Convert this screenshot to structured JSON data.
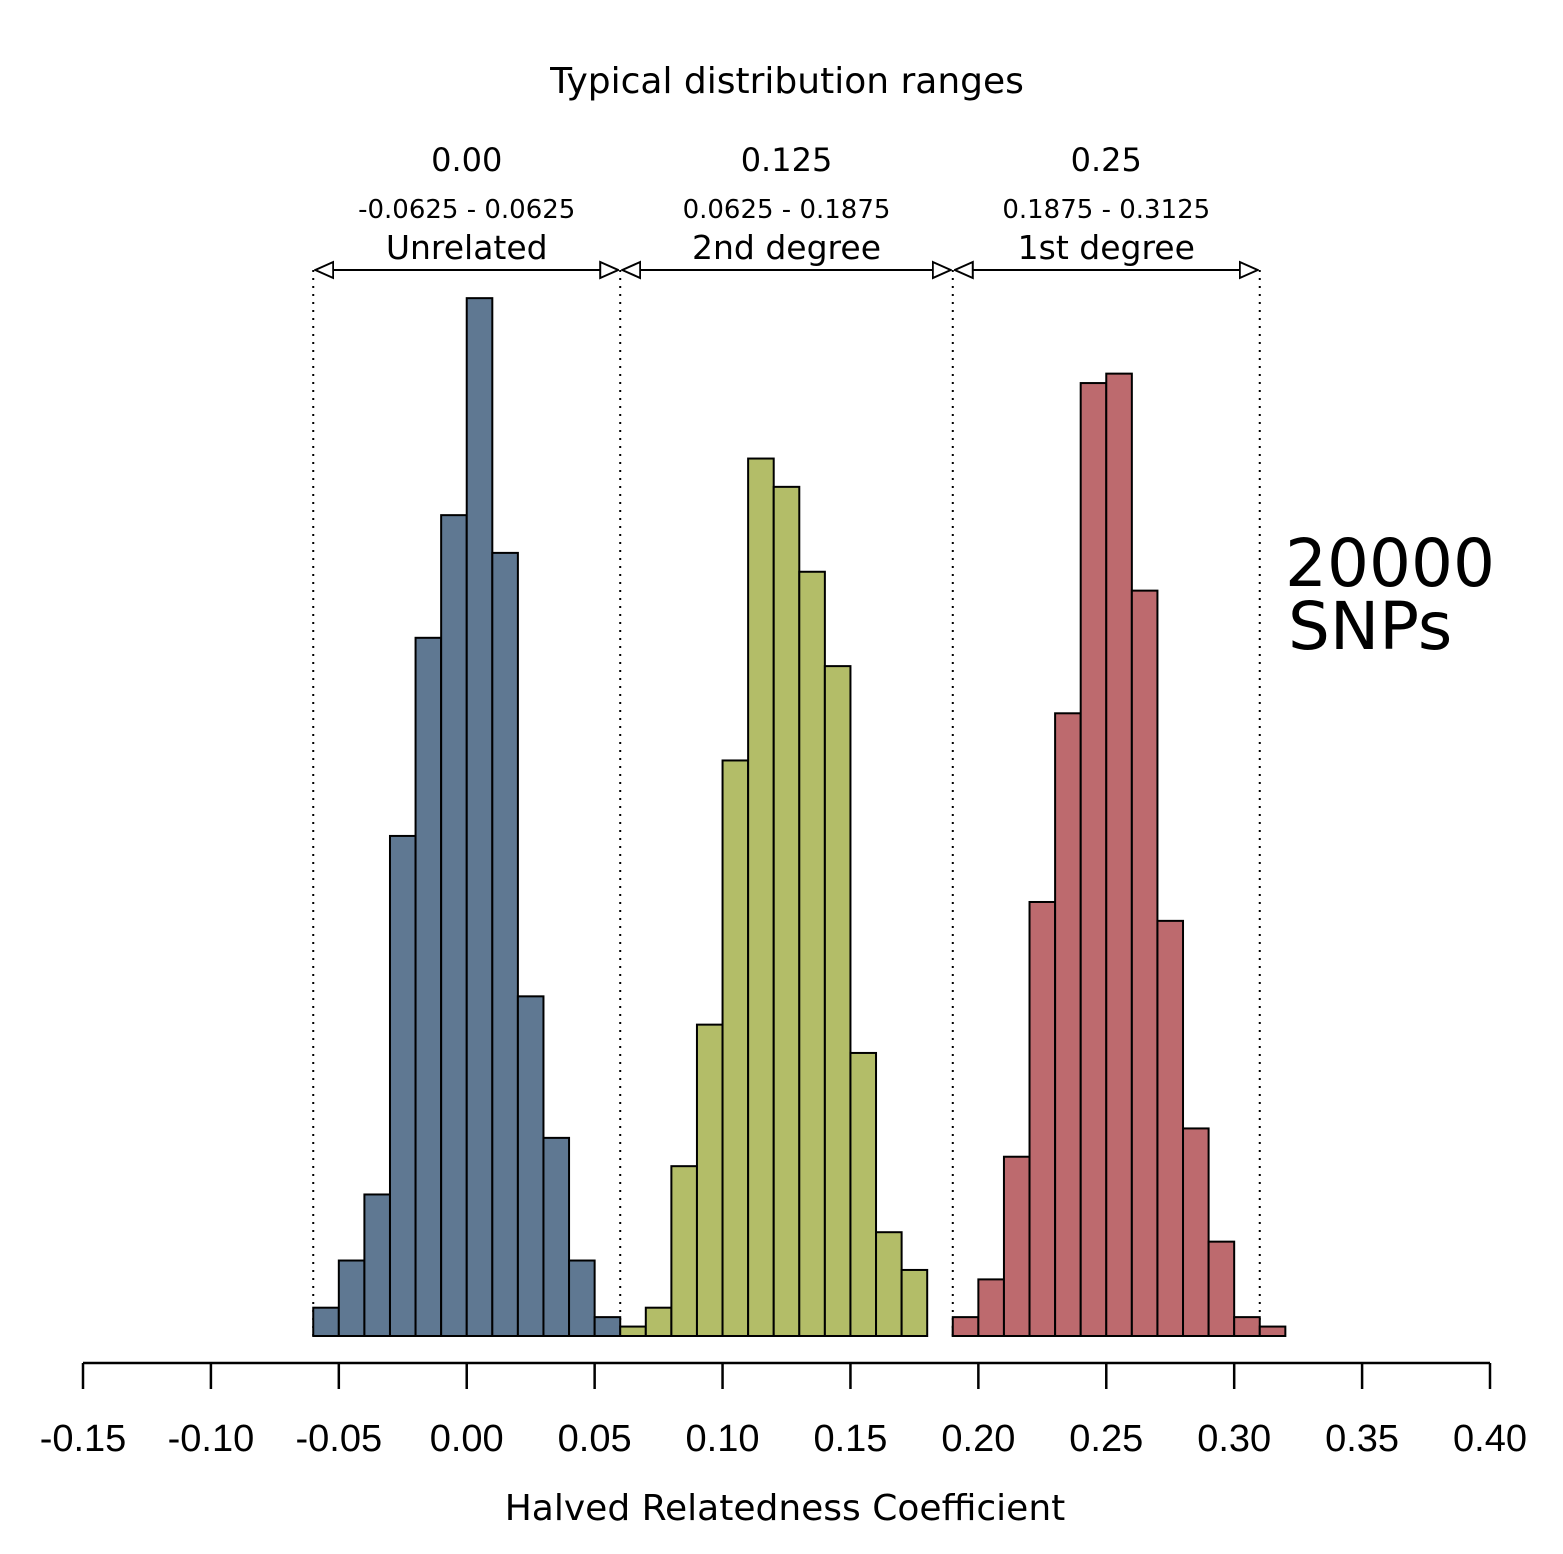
{
  "chart_data": {
    "type": "bar",
    "title": "Typical distribution ranges",
    "xlabel": "Halved Relatedness Coefficient",
    "ylabel": "",
    "xlim": [
      -0.15,
      0.4
    ],
    "x_ticks": [
      "-0.15",
      "-0.10",
      "-0.05",
      "0.00",
      "0.05",
      "0.10",
      "0.15",
      "0.20",
      "0.25",
      "0.30",
      "0.35",
      "0.40"
    ],
    "bin_width": 0.01,
    "grid": false,
    "annotation": {
      "line1": "20000",
      "line2": "SNPs"
    },
    "ranges": [
      {
        "expected": "0.00",
        "interval": "-0.0625 - 0.0625",
        "label": "Unrelated",
        "from": -0.06,
        "to": 0.06
      },
      {
        "expected": "0.125",
        "interval": "0.0625 - 0.1875",
        "label": "2nd degree",
        "from": 0.06,
        "to": 0.19
      },
      {
        "expected": "0.25",
        "interval": "0.1875 - 0.3125",
        "label": "1st degree",
        "from": 0.19,
        "to": 0.31
      }
    ],
    "series": [
      {
        "color": "#5f7892",
        "bin_starts": [
          -0.06,
          -0.05,
          -0.04,
          -0.03,
          -0.02,
          -0.01,
          0.0,
          0.01,
          0.02,
          0.03,
          0.04,
          0.05
        ],
        "values": [
          3,
          8,
          15,
          53,
          74,
          87,
          110,
          83,
          36,
          21,
          8,
          2
        ]
      },
      {
        "color": "#b3bd68",
        "bin_starts": [
          0.06,
          0.07,
          0.08,
          0.09,
          0.1,
          0.11,
          0.12,
          0.13,
          0.14,
          0.15,
          0.16,
          0.17,
          0.19
        ],
        "values": [
          1,
          3,
          18,
          33,
          61,
          93,
          90,
          81,
          71,
          30,
          11,
          7,
          1
        ]
      },
      {
        "color": "#bd6a6e",
        "bin_starts": [
          0.19,
          0.2,
          0.21,
          0.22,
          0.23,
          0.24,
          0.25,
          0.26,
          0.27,
          0.28,
          0.29,
          0.3,
          0.31
        ],
        "values": [
          2,
          6,
          19,
          46,
          66,
          101,
          102,
          79,
          44,
          22,
          10,
          2,
          1
        ]
      }
    ]
  }
}
